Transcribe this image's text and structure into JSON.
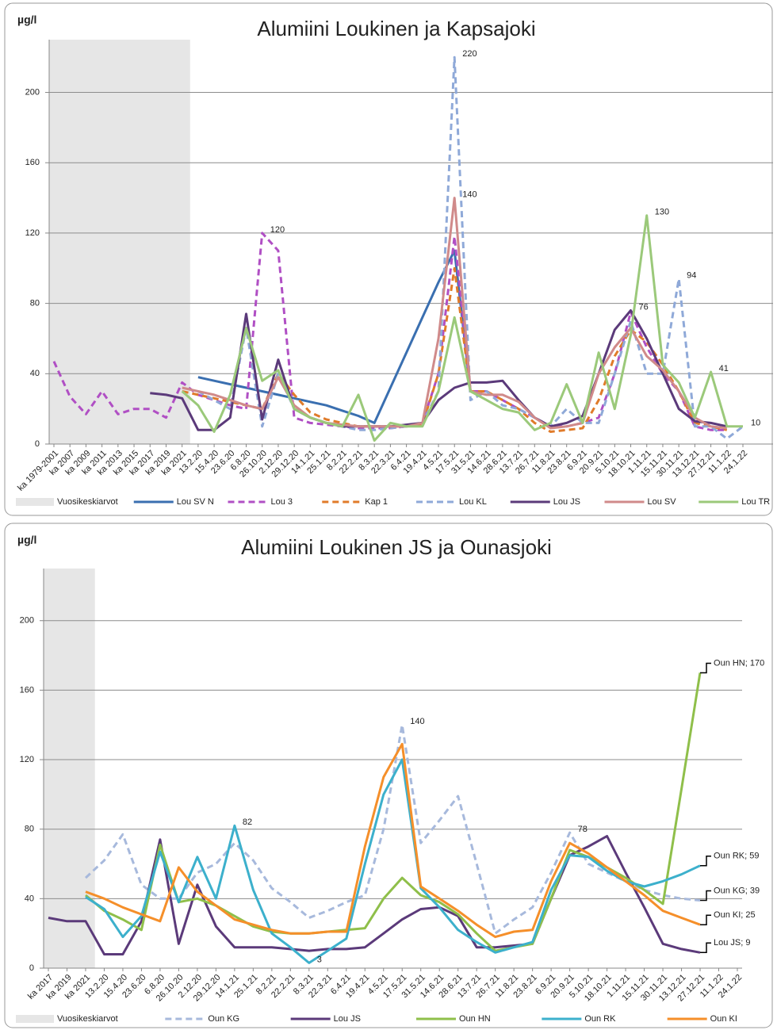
{
  "chart_data": [
    {
      "type": "line",
      "title": "Alumiini Loukinen ja Kapsajoki",
      "y_unit": "µg/l",
      "categories": [
        "ka 1979-2001",
        "ka 2007",
        "ka 2009",
        "ka 2011",
        "ka 2013",
        "ka 2015",
        "ka 2017",
        "ka 2019",
        "ka 2021",
        "13.2.20",
        "15.4.20",
        "23.6.20",
        "6.8.20",
        "26.10.20",
        "2.12.20",
        "29.12.20",
        "14.1.21",
        "25.1.21",
        "8.2.21",
        "22.2.21",
        "8.3.21",
        "22.3.21",
        "6.4.21",
        "19.4.21",
        "4.5.21",
        "17.5.21",
        "31.5.21",
        "14.6.21",
        "28.6.21",
        "13.7.21",
        "26.7.21",
        "11.8.21",
        "23.8.21",
        "6.9.21",
        "20.9.21",
        "5.10.21",
        "18.10.21",
        "1.11.21",
        "15.11.21",
        "30.11.21",
        "13.12.21",
        "27.12.21",
        "11.1.22",
        "24.1.22"
      ],
      "shade": {
        "label": "Vuosikeskiarvot",
        "from": "ka 1979-2001",
        "to": "ka 2021"
      },
      "series": [
        {
          "name": "Lou SV N",
          "color": "#3a6fb0",
          "style": "solid",
          "values": [
            null,
            null,
            null,
            null,
            null,
            null,
            null,
            null,
            null,
            38,
            36,
            34,
            32,
            30,
            28,
            26,
            24,
            22,
            19,
            16,
            12,
            32,
            52,
            72,
            92,
            110,
            30,
            null,
            null,
            null,
            null,
            null,
            null,
            null,
            null,
            null,
            null,
            null,
            null,
            null,
            null,
            null,
            null,
            null
          ]
        },
        {
          "name": "Lou 3",
          "color": "#b04fc4",
          "style": "dashed",
          "values": [
            47,
            27,
            17,
            30,
            17,
            20,
            20,
            15,
            35,
            28,
            25,
            22,
            20,
            120,
            110,
            15,
            12,
            11,
            10,
            9,
            9,
            9,
            10,
            12,
            40,
            118,
            30,
            30,
            25,
            20,
            15,
            10,
            10,
            12,
            15,
            40,
            75,
            55,
            40,
            30,
            10,
            8,
            8,
            null
          ]
        },
        {
          "name": "Kap 1",
          "color": "#e07b2a",
          "style": "dashed",
          "values": [
            null,
            null,
            null,
            null,
            null,
            null,
            null,
            null,
            30,
            28,
            26,
            24,
            22,
            20,
            40,
            28,
            18,
            14,
            12,
            10,
            10,
            10,
            10,
            11,
            40,
            100,
            30,
            30,
            25,
            20,
            12,
            7,
            8,
            9,
            25,
            50,
            65,
            58,
            45,
            30,
            12,
            10,
            8,
            null
          ]
        },
        {
          "name": "Lou KL",
          "color": "#8fa9d8",
          "style": "dashed",
          "values": [
            null,
            null,
            null,
            null,
            null,
            null,
            null,
            null,
            null,
            30,
            25,
            20,
            66,
            10,
            40,
            20,
            15,
            12,
            10,
            8,
            8,
            9,
            10,
            12,
            30,
            220,
            25,
            30,
            22,
            20,
            15,
            10,
            20,
            12,
            12,
            40,
            70,
            40,
            40,
            94,
            10,
            10,
            3,
            10
          ]
        },
        {
          "name": "Lou JS",
          "color": "#5b3a7a",
          "style": "solid",
          "values": [
            null,
            null,
            null,
            null,
            null,
            null,
            29,
            28,
            26,
            8,
            8,
            15,
            74,
            14,
            48,
            20,
            15,
            12,
            10,
            10,
            10,
            10,
            11,
            12,
            25,
            32,
            35,
            35,
            36,
            25,
            15,
            10,
            12,
            16,
            40,
            65,
            76,
            60,
            40,
            20,
            13,
            12,
            10,
            null
          ]
        },
        {
          "name": "Lou SV",
          "color": "#d08a8a",
          "style": "solid",
          "values": [
            null,
            null,
            null,
            null,
            null,
            null,
            null,
            null,
            32,
            30,
            28,
            25,
            22,
            20,
            38,
            22,
            15,
            12,
            11,
            10,
            10,
            10,
            10,
            12,
            60,
            140,
            30,
            28,
            28,
            24,
            15,
            9,
            10,
            12,
            40,
            55,
            66,
            50,
            42,
            30,
            15,
            10,
            9,
            null
          ]
        },
        {
          "name": "Lou TR",
          "color": "#9bc97a",
          "style": "solid",
          "values": [
            null,
            null,
            null,
            null,
            null,
            null,
            null,
            null,
            30,
            22,
            7,
            28,
            66,
            36,
            42,
            20,
            15,
            12,
            10,
            28,
            2,
            12,
            10,
            10,
            30,
            72,
            30,
            25,
            20,
            18,
            8,
            12,
            34,
            12,
            52,
            20,
            62,
            130,
            45,
            35,
            15,
            41,
            10,
            10
          ]
        }
      ],
      "data_labels": [
        220,
        120,
        140,
        76,
        130,
        94,
        41,
        10
      ],
      "ylim": [
        0,
        230
      ],
      "yticks": [
        0,
        40,
        80,
        120,
        160,
        200
      ],
      "grid": true
    },
    {
      "type": "line",
      "title": "Alumiini Loukinen JS ja Ounasjoki",
      "y_unit": "µg/l",
      "categories": [
        "ka 2017",
        "ka 2019",
        "ka 2021",
        "13.2.20",
        "15.4.20",
        "23.6.20",
        "6.8.20",
        "26.10.20",
        "2.12.20",
        "29.12.20",
        "14.1.21",
        "25.1.21",
        "8.2.21",
        "22.2.21",
        "8.3.21",
        "22.3.21",
        "6.4.21",
        "19.4.21",
        "4.5.21",
        "17.5.21",
        "31.5.21",
        "14.6.21",
        "28.6.21",
        "13.7.21",
        "26.7.21",
        "11.8.21",
        "23.8.21",
        "6.9.21",
        "20.9.21",
        "5.10.21",
        "18.10.21",
        "1.11.21",
        "15.11.21",
        "30.11.21",
        "13.12.21",
        "27.12.21",
        "11.1.22",
        "24.1.22"
      ],
      "shade": {
        "label": "Vuosikeskiarvot",
        "from": "ka 2017",
        "to": "ka 2021"
      },
      "series": [
        {
          "name": "Oun KG",
          "color": "#a7b9dc",
          "style": "dashed",
          "end_label": "Oun KG; 39",
          "values": [
            null,
            null,
            52,
            62,
            77,
            48,
            40,
            40,
            55,
            60,
            72,
            62,
            46,
            38,
            29,
            33,
            38,
            42,
            80,
            140,
            72,
            85,
            99,
            60,
            20,
            28,
            35,
            55,
            78,
            60,
            55,
            50,
            45,
            42,
            40,
            39,
            null,
            null
          ]
        },
        {
          "name": "Lou JS",
          "color": "#5b3a7a",
          "style": "solid",
          "end_label": "Lou JS; 9",
          "values": [
            29,
            27,
            27,
            8,
            8,
            27,
            74,
            14,
            48,
            24,
            12,
            12,
            12,
            11,
            10,
            11,
            11,
            12,
            20,
            28,
            34,
            35,
            30,
            12,
            12,
            13,
            14,
            40,
            65,
            70,
            76,
            55,
            35,
            14,
            11,
            9,
            null,
            null
          ]
        },
        {
          "name": "Oun HN",
          "color": "#8fbf4a",
          "style": "solid",
          "end_label": "Oun HN; 170",
          "values": [
            null,
            null,
            42,
            33,
            28,
            22,
            71,
            38,
            40,
            36,
            30,
            24,
            21,
            20,
            20,
            21,
            22,
            23,
            40,
            52,
            42,
            38,
            31,
            20,
            10,
            12,
            14,
            40,
            68,
            64,
            58,
            52,
            45,
            37,
            103,
            170,
            null,
            null
          ]
        },
        {
          "name": "Oun RK",
          "color": "#3cb0cc",
          "style": "solid",
          "end_label": "Oun RK; 59",
          "values": [
            null,
            null,
            41,
            34,
            18,
            30,
            67,
            38,
            64,
            40,
            82,
            45,
            20,
            12,
            3,
            10,
            17,
            60,
            100,
            120,
            46,
            35,
            22,
            15,
            9,
            12,
            15,
            45,
            65,
            64,
            56,
            50,
            47,
            50,
            54,
            59,
            null,
            null
          ]
        },
        {
          "name": "Oun KI",
          "color": "#f58f2a",
          "style": "solid",
          "end_label": "Oun KI; 25",
          "values": [
            null,
            null,
            44,
            40,
            35,
            31,
            27,
            58,
            44,
            36,
            28,
            25,
            22,
            20,
            20,
            21,
            21,
            70,
            110,
            129,
            47,
            40,
            33,
            25,
            18,
            21,
            22,
            50,
            72,
            66,
            58,
            50,
            42,
            33,
            29,
            25,
            null,
            null
          ]
        }
      ],
      "data_labels": [
        140,
        82,
        78,
        3
      ],
      "ylim": [
        0,
        230
      ],
      "yticks": [
        0,
        40,
        80,
        120,
        160,
        200
      ],
      "grid": true
    }
  ]
}
